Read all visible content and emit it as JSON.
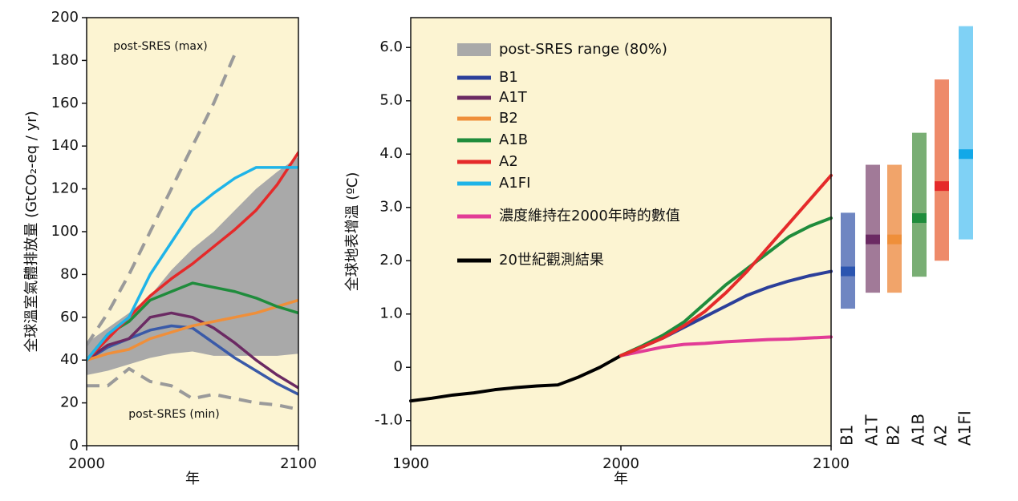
{
  "chart_data": [
    {
      "type": "line",
      "ylabel": "全球溫室氣體排放量 (GtCO₂-eq / yr)",
      "xlabel": "年",
      "annotations": [
        "post-SRES (max)",
        "post-SRES (min)"
      ],
      "x": [
        2000,
        2010,
        2020,
        2030,
        2040,
        2050,
        2060,
        2070,
        2080,
        2090,
        2100
      ],
      "xlim": [
        2000,
        2100
      ],
      "xticks": [
        2000,
        2100
      ],
      "ylim": [
        0,
        200
      ],
      "yticks": [
        0,
        20,
        40,
        60,
        80,
        100,
        120,
        140,
        160,
        180,
        200
      ],
      "background": "#fcf4d2",
      "range": {
        "color": "#a9a9a9",
        "upper": [
          48,
          55,
          62,
          70,
          82,
          92,
          100,
          110,
          120,
          128,
          135
        ],
        "lower": [
          33,
          35,
          38,
          41,
          43,
          44,
          42,
          42,
          42,
          42,
          43
        ]
      },
      "bounds": {
        "color": "#9a9a9a",
        "max": [
          47,
          62,
          80,
          100,
          120,
          140,
          160,
          183,
          null,
          null,
          null
        ],
        "min": [
          28,
          28,
          36,
          30,
          28,
          22,
          24,
          22,
          20,
          19,
          17
        ]
      },
      "series": [
        {
          "color": "#3a5aa8",
          "values": [
            40,
            46,
            50,
            54,
            56,
            55,
            48,
            41,
            35,
            29,
            24
          ]
        },
        {
          "color": "#6b2a63",
          "values": [
            40,
            47,
            50,
            60,
            62,
            60,
            55,
            48,
            40,
            33,
            27
          ]
        },
        {
          "color": "#ef8f3a",
          "values": [
            40,
            43,
            45,
            50,
            53,
            56,
            58,
            60,
            62,
            65,
            68
          ]
        },
        {
          "color": "#1f8c3c",
          "values": [
            40,
            52,
            58,
            68,
            72,
            76,
            74,
            72,
            69,
            65,
            62
          ]
        },
        {
          "color": "#e52a2a",
          "values": [
            40,
            50,
            60,
            70,
            78,
            85,
            93,
            101,
            110,
            122,
            137
          ]
        },
        {
          "color": "#1fb4e8",
          "values": [
            40,
            52,
            60,
            80,
            95,
            110,
            118,
            125,
            130,
            130,
            130
          ]
        }
      ]
    },
    {
      "type": "line",
      "ylabel": "全球地表增溫 (ºC)",
      "xlabel": "年",
      "x": [
        1900,
        1910,
        1920,
        1930,
        1940,
        1950,
        1960,
        1970,
        1980,
        1990,
        2000,
        2010,
        2020,
        2030,
        2040,
        2050,
        2060,
        2070,
        2080,
        2090,
        2100
      ],
      "xlim": [
        1900,
        2100
      ],
      "xticks": [
        1900,
        2000,
        2100
      ],
      "ylim": [
        -1.47,
        6.56
      ],
      "yticks": [
        {
          "value": -1,
          "label": "-1.0"
        },
        0,
        {
          "value": 1,
          "label": "1.0"
        },
        {
          "value": 2,
          "label": "2.0"
        },
        {
          "value": 3,
          "label": "3.0"
        },
        {
          "value": 4,
          "label": "4.0"
        },
        {
          "value": 5,
          "label": "5.0"
        },
        {
          "value": 6,
          "label": "6.0"
        }
      ],
      "background": "#fcf4d2",
      "legend": [
        {
          "name": "post-SRES range (80%)",
          "color": "#a9a9a9"
        },
        {
          "name": "B1",
          "color": "#2b3f9a"
        },
        {
          "name": "A1T",
          "color": "#6b2a63"
        },
        {
          "name": "B2",
          "color": "#ef8f3a"
        },
        {
          "name": "A1B",
          "color": "#1f8c3c"
        },
        {
          "name": "A2",
          "color": "#e52a2a"
        },
        {
          "name": "A1FI",
          "color": "#1fb4e8"
        },
        {
          "name": "濃度維持在2000年時的數值",
          "color": "#e23c96"
        },
        {
          "name": "20世紀觀測結果",
          "color": "#000000"
        }
      ],
      "series": [
        {
          "color": "#000000",
          "values": [
            -0.63,
            -0.58,
            -0.52,
            -0.48,
            -0.42,
            -0.38,
            -0.35,
            -0.33,
            -0.18,
            0.0,
            0.22,
            null,
            null,
            null,
            null,
            null,
            null,
            null,
            null,
            null,
            null
          ]
        },
        {
          "color": "#e23c96",
          "values": [
            null,
            null,
            null,
            null,
            null,
            null,
            null,
            null,
            null,
            null,
            0.22,
            0.3,
            0.38,
            0.43,
            0.45,
            0.48,
            0.5,
            0.52,
            0.53,
            0.55,
            0.57
          ]
        },
        {
          "color": "#2b3f9a",
          "values": [
            null,
            null,
            null,
            null,
            null,
            null,
            null,
            null,
            null,
            null,
            0.22,
            0.38,
            0.55,
            0.75,
            0.95,
            1.15,
            1.35,
            1.5,
            1.62,
            1.72,
            1.8
          ]
        },
        {
          "color": "#1f8c3c",
          "values": [
            null,
            null,
            null,
            null,
            null,
            null,
            null,
            null,
            null,
            null,
            0.22,
            0.4,
            0.6,
            0.85,
            1.2,
            1.55,
            1.85,
            2.15,
            2.45,
            2.65,
            2.8
          ]
        },
        {
          "color": "#e52a2a",
          "values": [
            null,
            null,
            null,
            null,
            null,
            null,
            null,
            null,
            null,
            null,
            0.22,
            0.38,
            0.55,
            0.78,
            1.05,
            1.4,
            1.8,
            2.25,
            2.7,
            3.15,
            3.6
          ]
        }
      ]
    },
    {
      "type": "range",
      "categories": [
        "B1",
        "A1T",
        "B2",
        "A1B",
        "A2",
        "A1FI"
      ],
      "colors": [
        "#6f86c2",
        "#a17a98",
        "#f1a46a",
        "#79ae74",
        "#ee8a6a",
        "#7fd1f5"
      ],
      "best_colors": [
        "#2b55b0",
        "#6b2a63",
        "#ef8f3a",
        "#1f8c3c",
        "#e52a2a",
        "#12a8e8"
      ],
      "low": [
        1.1,
        1.4,
        1.4,
        1.7,
        2.0,
        2.4
      ],
      "high": [
        2.9,
        3.8,
        3.8,
        4.4,
        5.4,
        6.4
      ],
      "best": [
        1.8,
        2.4,
        2.4,
        2.8,
        3.4,
        4.0
      ]
    }
  ]
}
